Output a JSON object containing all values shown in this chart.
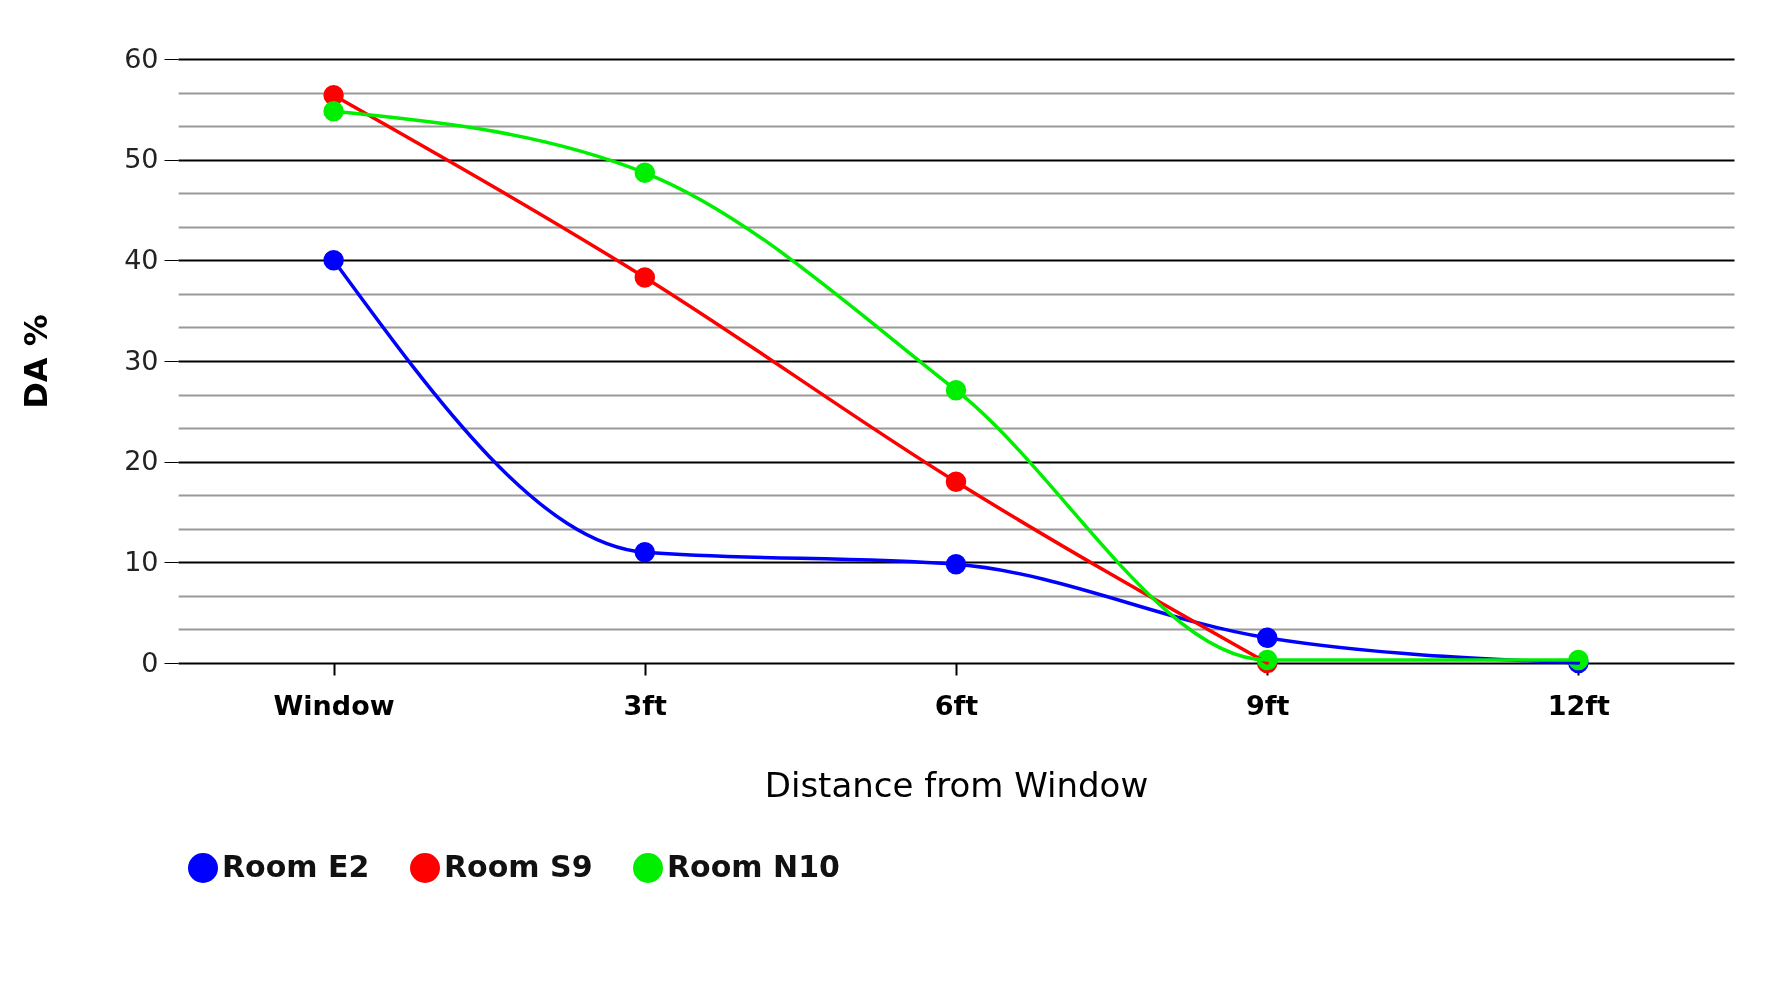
{
  "chart_data": {
    "type": "line",
    "xlabel": "Distance  from Window",
    "ylabel": "DA %",
    "categories": [
      "Window",
      "3ft",
      "6ft",
      "9ft",
      "12ft"
    ],
    "series": [
      {
        "name": "Room E2",
        "color": "#0000ff",
        "values": [
          40,
          11,
          9.8,
          2.5,
          0
        ]
      },
      {
        "name": "Room S9",
        "color": "#ff0000",
        "values": [
          56.4,
          38.3,
          18,
          0,
          null
        ]
      },
      {
        "name": "Room N10",
        "color": "#00ee00",
        "values": [
          54.8,
          48.7,
          27.1,
          0.3,
          0.3
        ]
      }
    ],
    "ylim": [
      0,
      60
    ],
    "yticks": [
      0,
      {
        "value": 3.33,
        "label": null
      },
      {
        "value": 6.67,
        "label": null
      },
      10,
      {
        "value": 13.33,
        "label": null
      },
      {
        "value": 16.67,
        "label": null
      },
      20,
      {
        "value": 23.33,
        "label": null
      },
      {
        "value": 26.67,
        "label": null
      },
      30,
      {
        "value": 33.33,
        "label": null
      },
      {
        "value": 36.67,
        "label": null
      },
      40,
      {
        "value": 43.33,
        "label": null
      },
      {
        "value": 46.67,
        "label": null
      },
      50,
      {
        "value": 53.33,
        "label": null
      },
      {
        "value": 56.67,
        "label": null
      },
      60
    ],
    "grid": "y",
    "legend": "bottom",
    "marker": "circle",
    "line_style": "solid"
  }
}
